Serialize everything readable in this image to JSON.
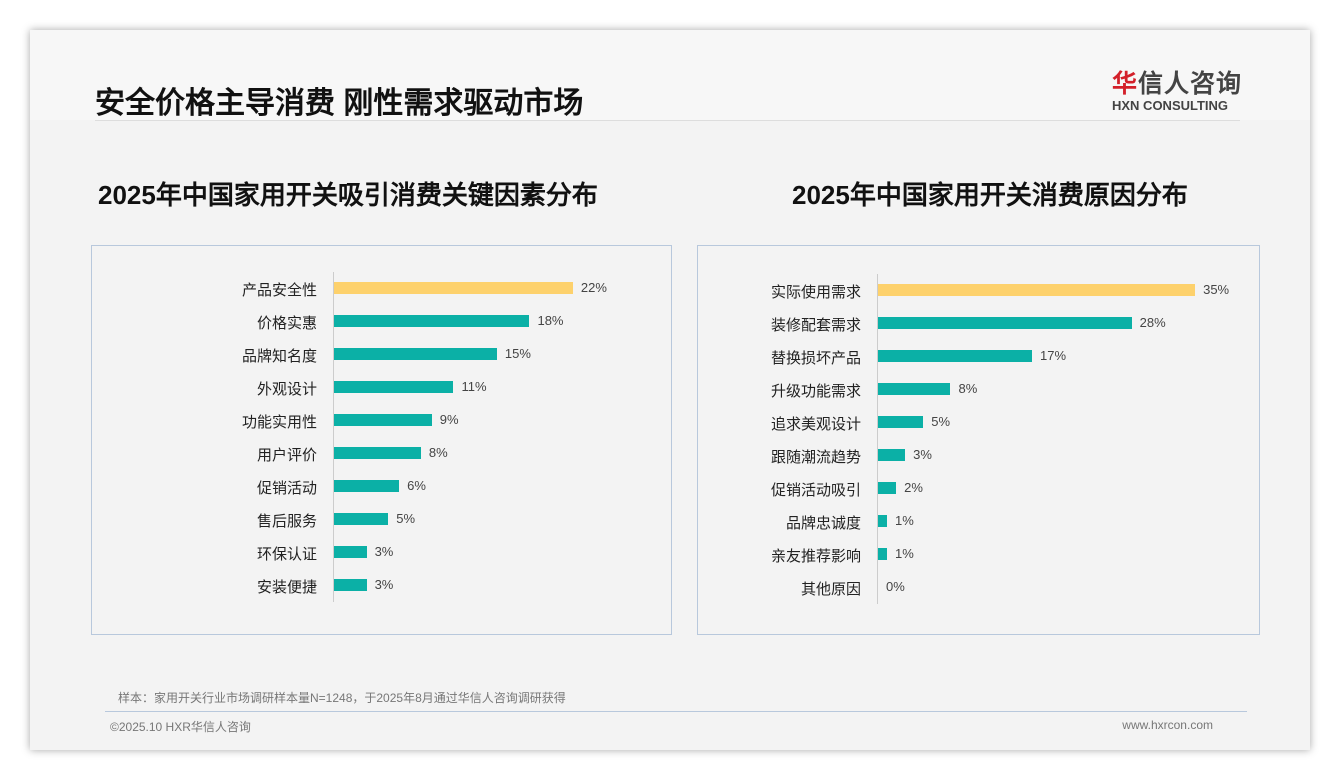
{
  "header": {
    "title": "安全价格主导消费 刚性需求驱动市场",
    "logo_cn_mark": "华",
    "logo_cn": "信人咨询",
    "logo_en": "HXN CONSULTING"
  },
  "colors": {
    "highlight": "#fdd16c",
    "bar": "#0bb0a6"
  },
  "chart_data": [
    {
      "type": "bar",
      "orientation": "horizontal",
      "title": "2025年中国家用开关吸引消费关键因素分布",
      "unit": "%",
      "categories": [
        "产品安全性",
        "价格实惠",
        "品牌知名度",
        "外观设计",
        "功能实用性",
        "用户评价",
        "促销活动",
        "售后服务",
        "环保认证",
        "安装便捷"
      ],
      "values": [
        22,
        18,
        15,
        11,
        9,
        8,
        6,
        5,
        3,
        3
      ],
      "labels": [
        "22%",
        "18%",
        "15%",
        "11%",
        "9%",
        "8%",
        "6%",
        "5%",
        "3%",
        "3%"
      ]
    },
    {
      "type": "bar",
      "orientation": "horizontal",
      "title": "2025年中国家用开关消费原因分布",
      "unit": "%",
      "categories": [
        "实际使用需求",
        "装修配套需求",
        "替换损坏产品",
        "升级功能需求",
        "追求美观设计",
        "跟随潮流趋势",
        "促销活动吸引",
        "品牌忠诚度",
        "亲友推荐影响",
        "其他原因"
      ],
      "values": [
        35,
        28,
        17,
        8,
        5,
        3,
        2,
        1,
        1,
        0
      ],
      "labels": [
        "35%",
        "28%",
        "17%",
        "8%",
        "5%",
        "3%",
        "2%",
        "1%",
        "1%",
        "0%"
      ]
    }
  ],
  "footer": {
    "note": "样本：家用开关行业市场调研样本量N=1248，于2025年8月通过华信人咨询调研获得",
    "copyright": "©2025.10 HXR华信人咨询",
    "url": "www.hxrcon.com"
  }
}
